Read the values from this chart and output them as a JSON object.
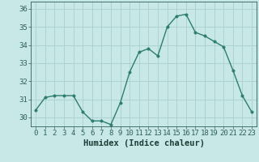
{
  "x": [
    0,
    1,
    2,
    3,
    4,
    5,
    6,
    7,
    8,
    9,
    10,
    11,
    12,
    13,
    14,
    15,
    16,
    17,
    18,
    19,
    20,
    21,
    22,
    23
  ],
  "y": [
    30.4,
    31.1,
    31.2,
    31.2,
    31.2,
    30.3,
    29.8,
    29.8,
    29.6,
    30.8,
    32.5,
    33.6,
    33.8,
    33.4,
    35.0,
    35.6,
    35.7,
    34.7,
    34.5,
    34.2,
    33.9,
    32.6,
    31.2,
    30.3
  ],
  "xlabel": "Humidex (Indice chaleur)",
  "ylim": [
    29.5,
    36.4
  ],
  "xlim": [
    -0.5,
    23.5
  ],
  "yticks": [
    30,
    31,
    32,
    33,
    34,
    35,
    36
  ],
  "xticks": [
    0,
    1,
    2,
    3,
    4,
    5,
    6,
    7,
    8,
    9,
    10,
    11,
    12,
    13,
    14,
    15,
    16,
    17,
    18,
    19,
    20,
    21,
    22,
    23
  ],
  "line_color": "#2d7d6e",
  "marker_color": "#2d7d6e",
  "bg_color": "#c8e8e8",
  "grid_color": "#a8cece",
  "tick_label_color": "#2d5f55",
  "xlabel_color": "#1a3d35",
  "xlabel_fontsize": 7.5,
  "tick_fontsize": 6.5,
  "linewidth": 1.0,
  "markersize": 2.5
}
